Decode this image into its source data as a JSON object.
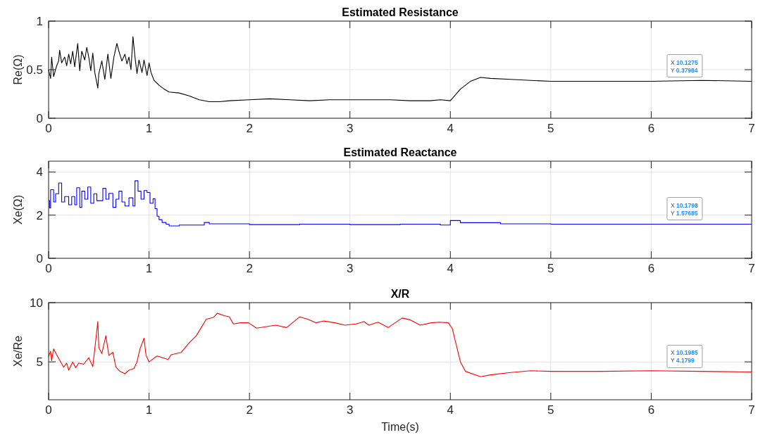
{
  "chart_data": [
    {
      "type": "line",
      "title": "Estimated Resistance",
      "ylabel": "Re(Ω)",
      "grid": true,
      "xlim": [
        0,
        7
      ],
      "ylim": [
        0,
        1
      ],
      "xticks": [
        0,
        1,
        2,
        3,
        4,
        5,
        6,
        7
      ],
      "yticks": [
        0,
        0.5,
        1
      ],
      "x": [
        0,
        0.02,
        0.03,
        0.05,
        0.08,
        0.1,
        0.11,
        0.13,
        0.16,
        0.18,
        0.2,
        0.22,
        0.24,
        0.26,
        0.29,
        0.31,
        0.33,
        0.36,
        0.38,
        0.4,
        0.42,
        0.44,
        0.46,
        0.49,
        0.5,
        0.53,
        0.56,
        0.59,
        0.62,
        0.65,
        0.68,
        0.7,
        0.73,
        0.76,
        0.78,
        0.8,
        0.82,
        0.84,
        0.86,
        0.88,
        0.9,
        0.93,
        0.95,
        0.98,
        1.0,
        1.02,
        1.05,
        1.1,
        1.15,
        1.2,
        1.3,
        1.4,
        1.5,
        1.6,
        1.7,
        1.8,
        2.0,
        2.2,
        2.4,
        2.6,
        2.8,
        3.0,
        3.2,
        3.4,
        3.6,
        3.8,
        3.9,
        4.0,
        4.1,
        4.2,
        4.3,
        4.4,
        4.6,
        4.8,
        5.0,
        5.5,
        6.0,
        6.5,
        7.0
      ],
      "series": [
        {
          "color": "#000000",
          "values": [
            0.5,
            0.41,
            0.63,
            0.43,
            0.54,
            0.59,
            0.7,
            0.57,
            0.63,
            0.54,
            0.66,
            0.56,
            0.69,
            0.53,
            0.77,
            0.49,
            0.69,
            0.6,
            0.73,
            0.63,
            0.49,
            0.67,
            0.47,
            0.31,
            0.46,
            0.59,
            0.4,
            0.66,
            0.41,
            0.63,
            0.77,
            0.69,
            0.59,
            0.66,
            0.56,
            0.63,
            0.5,
            0.84,
            0.63,
            0.46,
            0.6,
            0.47,
            0.6,
            0.44,
            0.57,
            0.47,
            0.39,
            0.34,
            0.3,
            0.27,
            0.26,
            0.23,
            0.19,
            0.17,
            0.17,
            0.18,
            0.19,
            0.2,
            0.19,
            0.18,
            0.19,
            0.19,
            0.19,
            0.19,
            0.18,
            0.18,
            0.19,
            0.18,
            0.3,
            0.38,
            0.42,
            0.41,
            0.4,
            0.39,
            0.38,
            0.38,
            0.38,
            0.39,
            0.38
          ]
        }
      ],
      "annotations": [
        "X 10.1275",
        "Y 0.37984"
      ]
    },
    {
      "type": "step",
      "title": "Estimated Reactance",
      "ylabel": "Xe(Ω)",
      "grid": true,
      "xlim": [
        0,
        7
      ],
      "ylim": [
        0,
        4.5
      ],
      "xticks": [
        0,
        1,
        2,
        3,
        4,
        5,
        6,
        7
      ],
      "yticks": [
        0,
        2,
        4
      ],
      "x": [
        0,
        0.01,
        0.02,
        0.05,
        0.07,
        0.1,
        0.13,
        0.16,
        0.2,
        0.23,
        0.26,
        0.28,
        0.31,
        0.33,
        0.36,
        0.39,
        0.42,
        0.45,
        0.48,
        0.54,
        0.57,
        0.6,
        0.64,
        0.67,
        0.7,
        0.73,
        0.76,
        0.8,
        0.84,
        0.86,
        0.89,
        0.92,
        0.95,
        0.98,
        1.01,
        1.04,
        1.06,
        1.08,
        1.1,
        1.13,
        1.17,
        1.2,
        1.3,
        1.5,
        1.55,
        1.6,
        1.8,
        2.0,
        2.5,
        3.0,
        3.5,
        3.9,
        4.0,
        4.1,
        4.5,
        5.0,
        5.5,
        6.0,
        6.5,
        7.0
      ],
      "series": [
        {
          "color": "#0000ff",
          "values": [
            2.67,
            2.33,
            3.18,
            2.61,
            2.99,
            3.49,
            2.61,
            2.86,
            2.48,
            2.86,
            2.48,
            3.27,
            2.36,
            3.11,
            2.74,
            3.3,
            2.55,
            2.99,
            2.67,
            3.24,
            2.74,
            3.01,
            2.36,
            2.74,
            3.11,
            2.61,
            2.42,
            2.8,
            2.42,
            3.59,
            3.11,
            2.74,
            3.14,
            3.05,
            2.55,
            2.76,
            2.3,
            1.95,
            1.79,
            1.66,
            1.58,
            1.5,
            1.54,
            1.54,
            1.66,
            1.6,
            1.6,
            1.56,
            1.58,
            1.56,
            1.58,
            1.54,
            1.75,
            1.65,
            1.6,
            1.58,
            1.58,
            1.58,
            1.58,
            1.58
          ]
        }
      ],
      "annotations": [
        "X 10.1798",
        "Y 1.57685"
      ]
    },
    {
      "type": "line",
      "title": "X/R",
      "xlabel": "Time(s)",
      "ylabel": "Xe/Re",
      "grid": true,
      "xlim": [
        0,
        7
      ],
      "ylim": [
        1.8,
        10
      ],
      "xticks": [
        0,
        1,
        2,
        3,
        4,
        5,
        6,
        7
      ],
      "yticks": [
        5,
        10
      ],
      "x": [
        0,
        0.02,
        0.03,
        0.05,
        0.08,
        0.12,
        0.15,
        0.18,
        0.2,
        0.24,
        0.27,
        0.3,
        0.35,
        0.4,
        0.44,
        0.46,
        0.49,
        0.5,
        0.53,
        0.57,
        0.6,
        0.64,
        0.67,
        0.71,
        0.76,
        0.8,
        0.85,
        0.88,
        0.91,
        0.95,
        0.97,
        1.0,
        1.08,
        1.19,
        1.22,
        1.32,
        1.4,
        1.47,
        1.52,
        1.57,
        1.64,
        1.68,
        1.75,
        1.8,
        1.84,
        1.91,
        1.99,
        2.07,
        2.15,
        2.26,
        2.37,
        2.5,
        2.58,
        2.66,
        2.74,
        2.85,
        2.95,
        3.06,
        3.14,
        3.19,
        3.28,
        3.38,
        3.52,
        3.6,
        3.7,
        3.81,
        3.89,
        3.98,
        4.02,
        4.1,
        4.15,
        4.3,
        4.4,
        4.6,
        4.8,
        5.0,
        5.5,
        6.0,
        6.5,
        7.0
      ],
      "series": [
        {
          "color": "#ff0000",
          "values": [
            5.45,
            5.9,
            5.1,
            6.1,
            5.6,
            5.0,
            4.55,
            4.9,
            4.3,
            5.0,
            4.5,
            4.9,
            4.8,
            5.35,
            4.6,
            6.1,
            8.4,
            6.2,
            5.7,
            7.2,
            5.55,
            5.8,
            4.55,
            4.2,
            4.0,
            4.3,
            4.45,
            5.0,
            6.1,
            7.0,
            5.55,
            5.0,
            5.5,
            5.2,
            5.6,
            5.8,
            6.6,
            7.2,
            7.9,
            8.6,
            8.75,
            9.1,
            8.9,
            8.8,
            8.2,
            8.3,
            8.3,
            7.85,
            7.95,
            8.1,
            7.9,
            8.8,
            8.6,
            8.3,
            8.45,
            8.3,
            8.1,
            8.2,
            8.4,
            8.1,
            8.35,
            7.9,
            8.7,
            8.55,
            8.1,
            8.3,
            8.35,
            8.3,
            7.8,
            5.0,
            4.2,
            3.75,
            3.9,
            4.1,
            4.25,
            4.2,
            4.2,
            4.25,
            4.2,
            4.15
          ]
        }
      ],
      "annotations": [
        "X 10.1985",
        "Y 4.1799"
      ]
    }
  ]
}
